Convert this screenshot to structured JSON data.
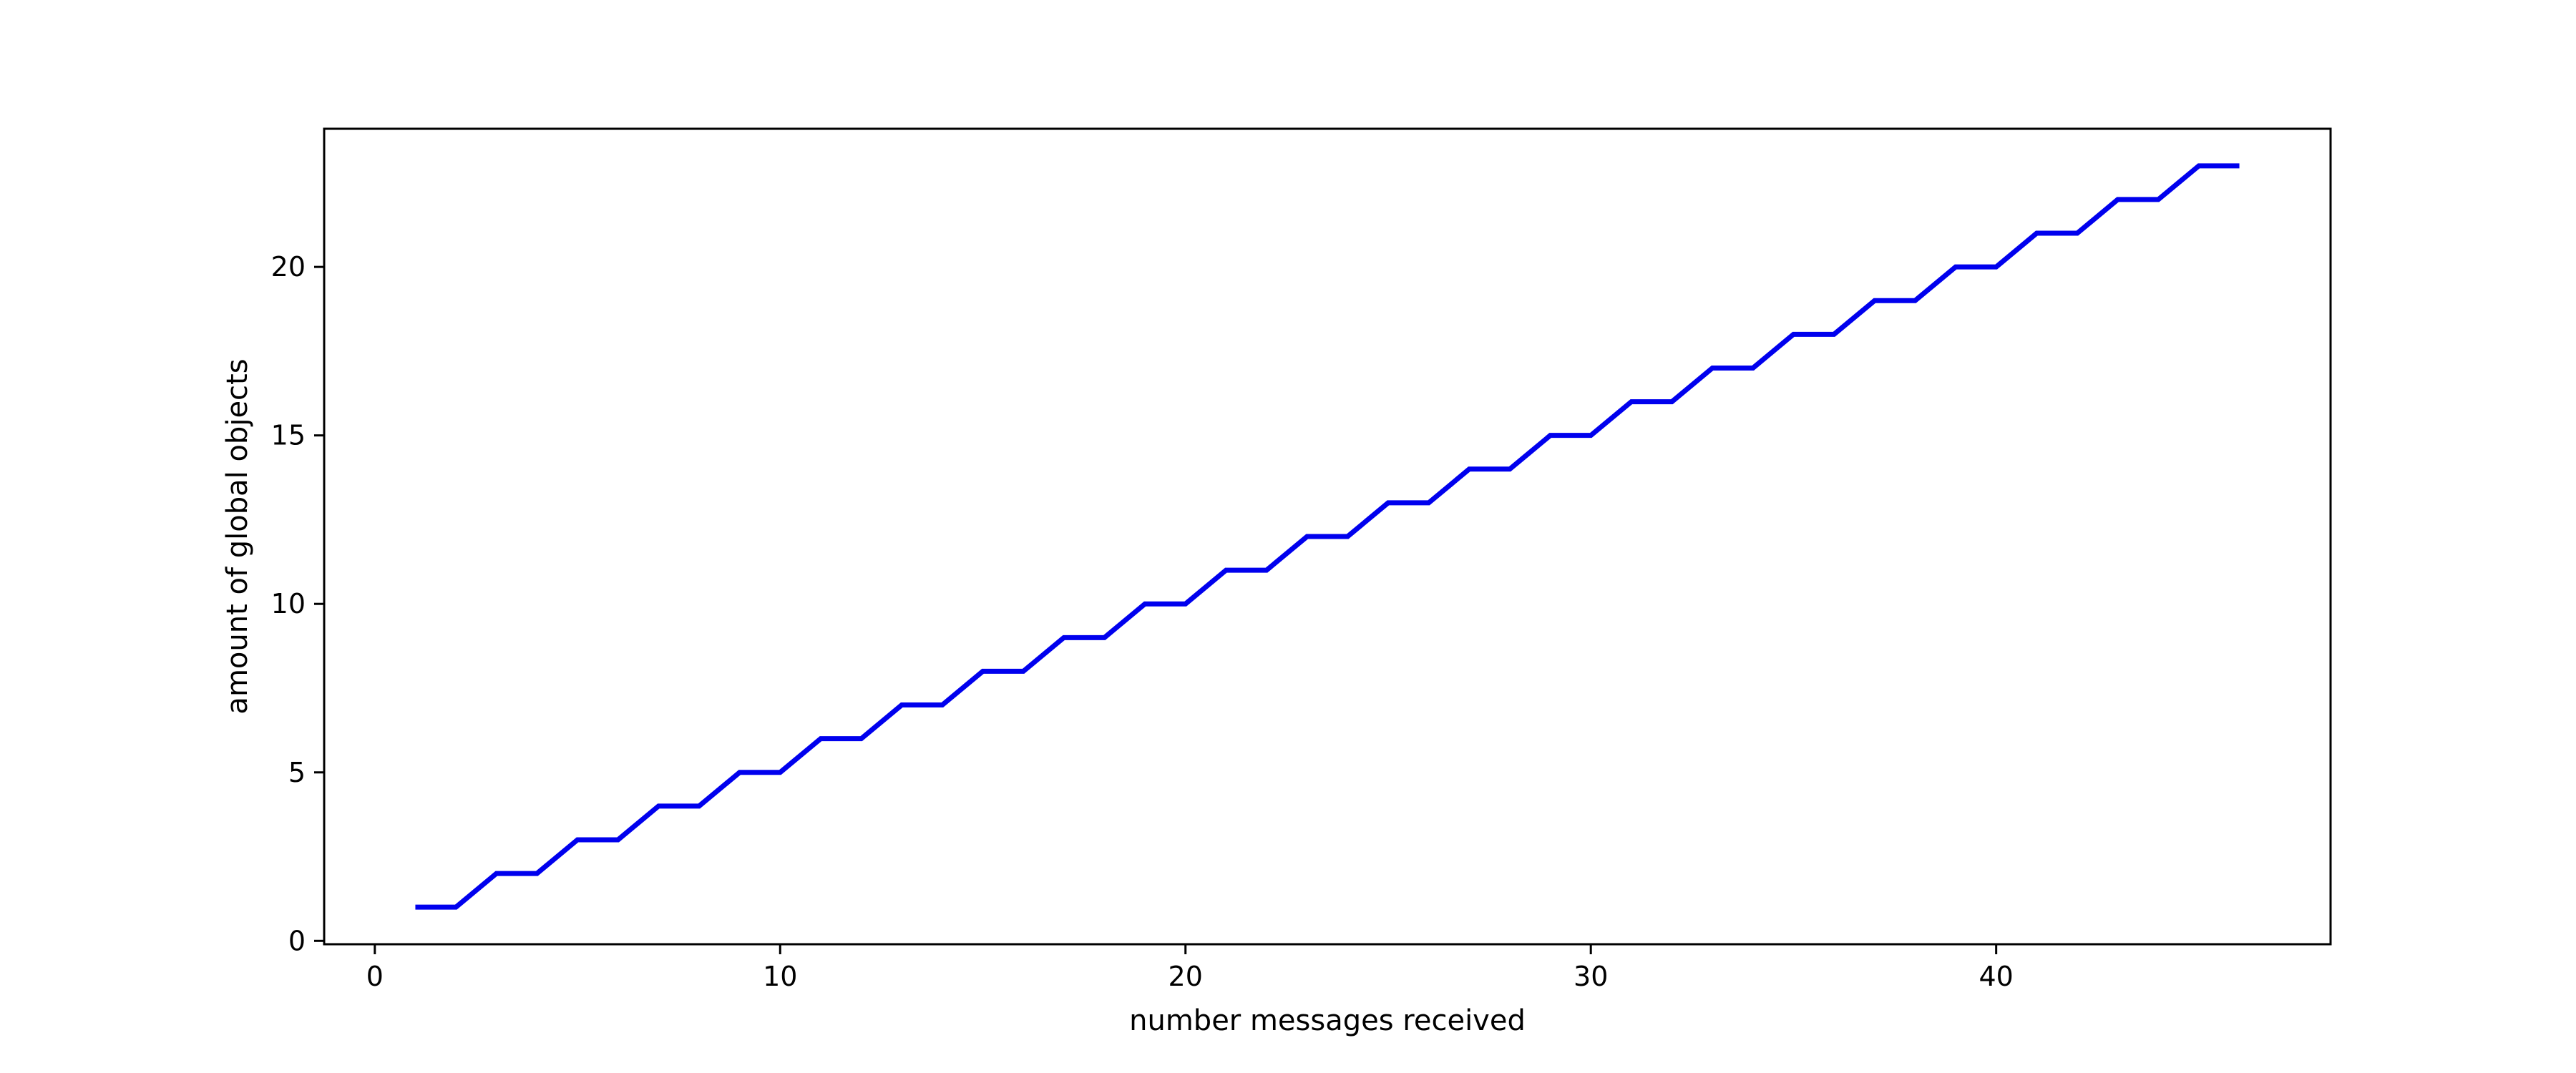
{
  "chart_data": {
    "type": "line",
    "title": "",
    "xlabel": "number messages received",
    "ylabel": "amount of global objects",
    "xlim": [
      -1.25,
      48.25
    ],
    "ylim": [
      -0.1,
      24.1
    ],
    "x_ticks": [
      0,
      10,
      20,
      30,
      40
    ],
    "y_ticks": [
      0,
      5,
      10,
      15,
      20
    ],
    "grid": false,
    "line_color": "#0000ee",
    "series": [
      {
        "x": [
          1,
          2,
          3,
          4,
          5,
          6,
          7,
          8,
          9,
          10,
          11,
          12,
          13,
          14,
          15,
          16,
          17,
          18,
          19,
          20,
          21,
          22,
          23,
          24,
          25,
          26,
          27,
          28,
          29,
          30,
          31,
          32,
          33,
          34,
          35,
          36,
          37,
          38,
          39,
          40,
          41,
          42,
          43,
          44,
          45,
          46
        ],
        "y": [
          1,
          1,
          2,
          2,
          3,
          3,
          4,
          4,
          5,
          5,
          6,
          6,
          7,
          7,
          8,
          8,
          9,
          9,
          10,
          10,
          11,
          11,
          12,
          12,
          13,
          13,
          14,
          14,
          15,
          15,
          16,
          16,
          17,
          17,
          18,
          18,
          19,
          19,
          20,
          20,
          21,
          21,
          22,
          22,
          23,
          23
        ]
      }
    ]
  }
}
